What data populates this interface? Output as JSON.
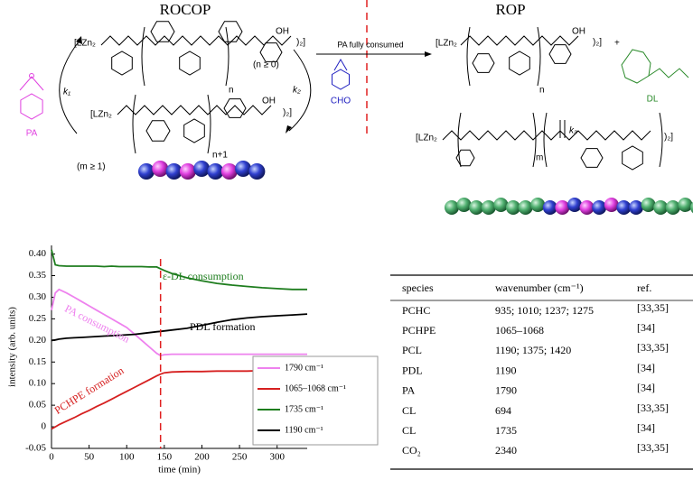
{
  "scheme": {
    "rocop_title": "ROCOP",
    "rop_title": "ROP",
    "arrow_label": "PA fully consumed",
    "chain_start": "[LZn₂",
    "chain_end": ")₂]",
    "oh": "OH",
    "n_cond": "(n ≥ 0)",
    "m_cond": "(m ≥ 1)",
    "n": "n",
    "n_plus_1": "n+1",
    "m": "m",
    "plus": "+",
    "k1": "k₁",
    "k2": "k₂",
    "k3": "k₃",
    "pa": "PA",
    "cho": "CHO",
    "dl": "DL"
  },
  "chart_data": {
    "type": "line",
    "xlabel": "time (min)",
    "ylabel": "intensity (arb. units)",
    "x": [
      0,
      5,
      10,
      20,
      30,
      40,
      50,
      60,
      70,
      80,
      90,
      100,
      110,
      120,
      130,
      140,
      145,
      150,
      160,
      180,
      200,
      220,
      240,
      260,
      280,
      300,
      320,
      340
    ],
    "series": [
      {
        "name": "1790 cm⁻¹",
        "color": "#ee82ee",
        "values": [
          0.27,
          0.31,
          0.318,
          0.31,
          0.3,
          0.29,
          0.28,
          0.27,
          0.26,
          0.25,
          0.24,
          0.23,
          0.215,
          0.2,
          0.185,
          0.17,
          0.165,
          0.167,
          0.168,
          0.168,
          0.168,
          0.168,
          0.168,
          0.168,
          0.168,
          0.168,
          0.168,
          0.168
        ]
      },
      {
        "name": "1065–1068 cm⁻¹",
        "color": "#d62020",
        "values": [
          -0.005,
          0,
          0.005,
          0.013,
          0.021,
          0.03,
          0.038,
          0.047,
          0.055,
          0.064,
          0.073,
          0.082,
          0.091,
          0.1,
          0.109,
          0.118,
          0.122,
          0.125,
          0.127,
          0.128,
          0.128,
          0.129,
          0.129,
          0.129,
          0.13,
          0.13,
          0.13,
          0.13
        ]
      },
      {
        "name": "1735 cm⁻¹",
        "color": "#1e7d1e",
        "values": [
          0.41,
          0.375,
          0.373,
          0.372,
          0.372,
          0.372,
          0.372,
          0.372,
          0.371,
          0.372,
          0.371,
          0.371,
          0.371,
          0.371,
          0.37,
          0.37,
          0.366,
          0.362,
          0.355,
          0.345,
          0.338,
          0.332,
          0.328,
          0.325,
          0.322,
          0.32,
          0.318,
          0.318
        ]
      },
      {
        "name": "1190 cm⁻¹",
        "color": "#000000",
        "values": [
          0.2,
          0.201,
          0.203,
          0.205,
          0.206,
          0.207,
          0.208,
          0.209,
          0.21,
          0.211,
          0.212,
          0.213,
          0.214,
          0.216,
          0.218,
          0.22,
          0.221,
          0.222,
          0.224,
          0.228,
          0.235,
          0.242,
          0.248,
          0.252,
          0.255,
          0.257,
          0.259,
          0.261
        ]
      }
    ],
    "xlim": [
      0,
      340
    ],
    "ylim": [
      -0.05,
      0.42
    ],
    "xticks": [
      0,
      50,
      100,
      150,
      200,
      250,
      300
    ],
    "yticks": [
      -0.05,
      0,
      0.05,
      {
        "value": 0.1,
        "label": "0.10"
      },
      0.15,
      {
        "value": 0.2,
        "label": "0.20"
      },
      0.25,
      {
        "value": 0.3,
        "label": "0.30"
      },
      0.35,
      {
        "value": 0.4,
        "label": "0.40"
      }
    ],
    "vline": 145,
    "vline_color": "#e02020",
    "annotations": [
      "ε-DL consumption",
      "PA consumption",
      "PDL formation",
      "PCHPE formation"
    ],
    "legend": "lower right"
  },
  "table": {
    "header": [
      "species",
      "wavenumber (cm⁻¹)",
      "ref."
    ],
    "rows": [
      [
        "PCHC",
        "935; 1010; 1237; 1275",
        "[33,35]"
      ],
      [
        "PCHPE",
        "1065–1068",
        "[34]"
      ],
      [
        "PCL",
        "1190; 1375; 1420",
        "[33,35]"
      ],
      [
        "PDL",
        "1190",
        "[34]"
      ],
      [
        "PA",
        "1790",
        "[34]"
      ],
      [
        "CL",
        "694",
        "[33,35]"
      ],
      [
        "CL",
        "1735",
        "[34]"
      ],
      [
        "CO₂",
        "2340",
        "[33,35]"
      ]
    ]
  }
}
